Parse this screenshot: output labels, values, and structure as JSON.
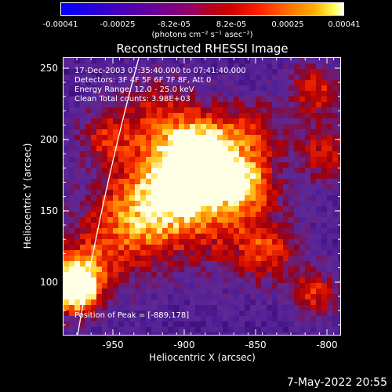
{
  "colorbar": {
    "tick_labels": [
      "-0.00041",
      "-0.00025",
      "-8.2e-05",
      "8.2e-05",
      "0.00025",
      "0.00041"
    ],
    "unit_label": "(photons cm⁻² s⁻¹ asec⁻²)"
  },
  "title": "Reconstructed RHESSI Image",
  "info": {
    "time_range": "17-Dec-2003 07:35:40.000 to 07:41:40.000",
    "detectors": "Detectors: 3F 4F 5F 6F 7F 8F, Att 0",
    "energy_range": "Energy Range: 12.0 - 25.0 keV",
    "clean": "Clean     Total counts: 3.98E+03"
  },
  "peak_text": "Position of Peak = [-889,178]",
  "axes": {
    "xlabel": "Heliocentric X (arcsec)",
    "ylabel": "Heliocentric Y (arcsec)",
    "x_ticks": [
      "-950",
      "-900",
      "-850",
      "-800"
    ],
    "y_ticks": [
      "250",
      "200",
      "150",
      "100"
    ]
  },
  "timestamp": "7-May-2022 20:55"
}
